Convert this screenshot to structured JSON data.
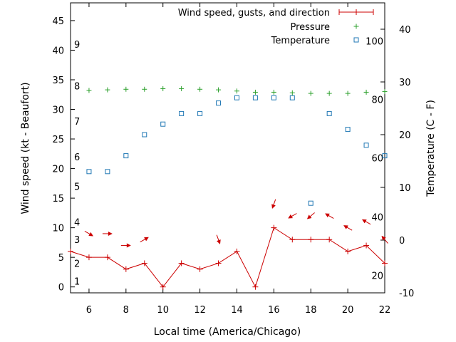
{
  "chart_data": {
    "type": "line",
    "xlabel": "Local time (America/Chicago)",
    "ylabel": "Wind speed (kt - Beaufort)",
    "y2label": "Temperature (C - F)",
    "xlim": [
      5,
      22
    ],
    "ylim": [
      -1,
      48
    ],
    "y2lim": [
      -10,
      45
    ],
    "xticks": [
      6,
      8,
      10,
      12,
      14,
      16,
      18,
      20,
      22
    ],
    "yticks": [
      0,
      5,
      10,
      15,
      20,
      25,
      30,
      35,
      40,
      45
    ],
    "y2ticks": [
      -10,
      0,
      10,
      20,
      30,
      40
    ],
    "beaufort_labels": [
      {
        "text": "1",
        "y": 1
      },
      {
        "text": "2",
        "y": 4
      },
      {
        "text": "3",
        "y": 8
      },
      {
        "text": "4",
        "y": 11
      },
      {
        "text": "5",
        "y": 17
      },
      {
        "text": "6",
        "y": 22
      },
      {
        "text": "7",
        "y": 28
      },
      {
        "text": "8",
        "y": 34
      },
      {
        "text": "9",
        "y": 41
      }
    ],
    "fahrenheit_labels": [
      {
        "text": "20",
        "y2": -6.7
      },
      {
        "text": "40",
        "y2": 4.4
      },
      {
        "text": "60",
        "y2": 15.6
      },
      {
        "text": "80",
        "y2": 26.7
      },
      {
        "text": "100",
        "y2": 37.8
      }
    ],
    "legend": {
      "placement": "top-right",
      "entries": [
        {
          "label": "Wind speed, gusts, and direction",
          "color": "#cc0000"
        },
        {
          "label": "Pressure",
          "color": "#2ca02c"
        },
        {
          "label": "Temperature",
          "color": "#1f77b4"
        }
      ]
    },
    "series": [
      {
        "name": "Wind speed, gusts, and direction",
        "color": "#cc0000",
        "axis": "y",
        "x": [
          5,
          6,
          7,
          8,
          9,
          10,
          11,
          12,
          13,
          14,
          15,
          16,
          17,
          18,
          19,
          20,
          21,
          22
        ],
        "values": [
          6,
          5,
          5,
          3,
          4,
          0,
          4,
          3,
          4,
          6,
          0,
          10,
          8,
          8,
          8,
          6,
          7,
          4
        ],
        "arrow_dir_deg": [
          null,
          300,
          270,
          270,
          240,
          null,
          null,
          null,
          340,
          null,
          null,
          20,
          60,
          50,
          120,
          120,
          120,
          140
        ]
      },
      {
        "name": "Pressure",
        "color": "#2ca02c",
        "axis": "y",
        "x": [
          6,
          7,
          8,
          9,
          10,
          11,
          12,
          13,
          14,
          15,
          16,
          17,
          18,
          19,
          20,
          21,
          22
        ],
        "values": [
          33.2,
          33.3,
          33.4,
          33.4,
          33.5,
          33.5,
          33.4,
          33.3,
          33.1,
          32.9,
          32.9,
          32.8,
          32.7,
          32.7,
          32.7,
          32.9,
          33.0
        ]
      },
      {
        "name": "Temperature",
        "color": "#1f77b4",
        "axis": "y2",
        "x": [
          6,
          7,
          8,
          9,
          10,
          11,
          12,
          13,
          14,
          15,
          16,
          17,
          18,
          19,
          20,
          21,
          22
        ],
        "values": [
          13,
          13,
          16,
          20,
          22,
          24,
          24,
          26,
          27,
          27,
          27,
          27,
          7,
          24,
          21,
          18,
          16
        ]
      }
    ]
  }
}
